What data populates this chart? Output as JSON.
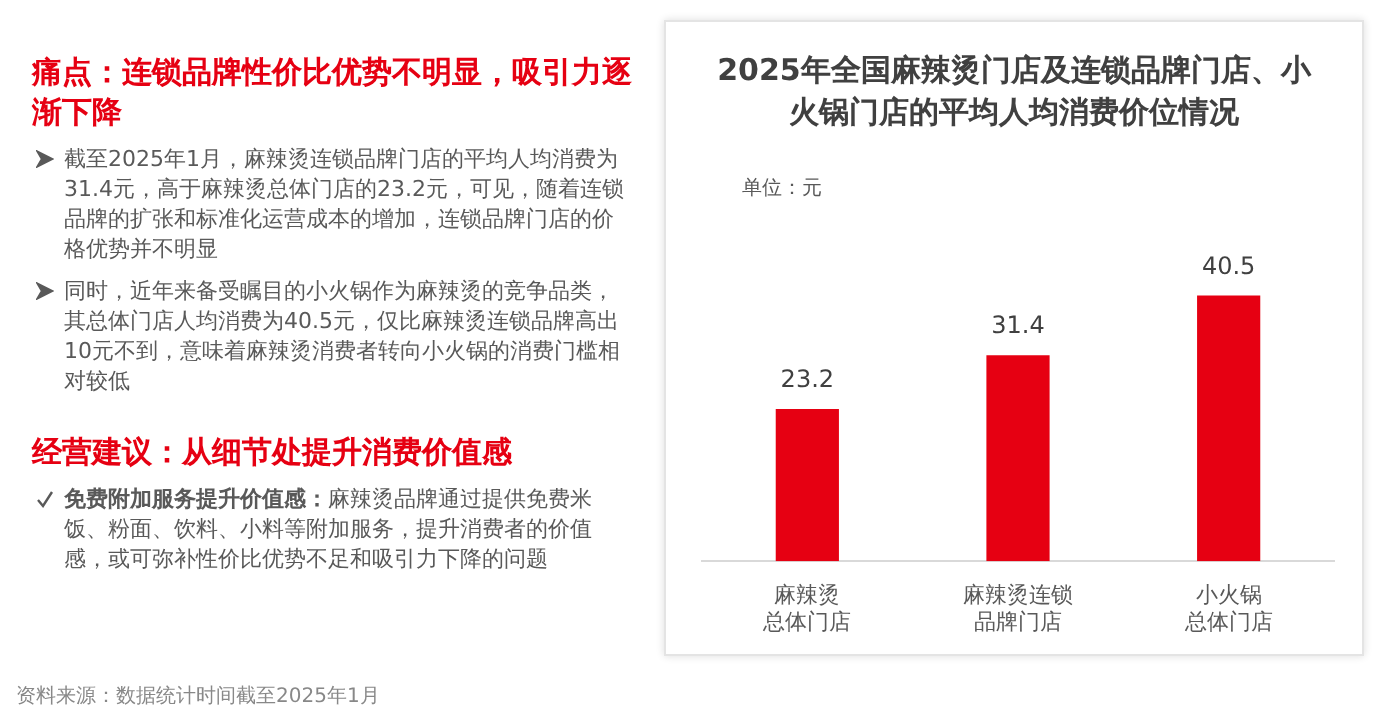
{
  "chart_data": {
    "type": "bar",
    "title": "2025年全国麻辣烫门店及连锁品牌门店、小火锅门店的平均人均消费价位情况",
    "categories": [
      "麻辣烫总体门店",
      "麻辣烫连锁品牌门店",
      "小火锅总体门店"
    ],
    "values": [
      23.2,
      31.4,
      40.5
    ],
    "color": "#e60012",
    "data_labels": true,
    "grid": false,
    "legend": false,
    "tick_labels": "x",
    "annotations": [
      "痛点：连锁品牌性价比优势不明显，吸引力逐渐下降",
      "截至2025年1月，麻辣烫连锁品牌门店的平均人均消费为31.4元，高于麻辣烫总体门店的23.2元，可见，随着连锁品牌的扩张和标准化运营成本的增加，连锁品牌门店的价格优势并不明显",
      "同时，近年来备受瞩目的小火锅作为麻辣烫的竞争品类，其总体门店人均消费为40.5元，仅比麻辣烫连锁品牌高出10元不到，意味着麻辣烫消费者转向小火锅的消费门槛相对较低",
      "经营建议：从细节处提升消费价值感",
      "免费附加服务提升价值感：",
      "麻辣烫品牌通过提供免费米饭、粉面、饮料、小料等附加服务，提升消费者的价值感，或可弥补性价比优势不足和吸引力下降的问题",
      "单位：元",
      "资料来源：数据统计时间截至2025年1月"
    ]
  }
}
